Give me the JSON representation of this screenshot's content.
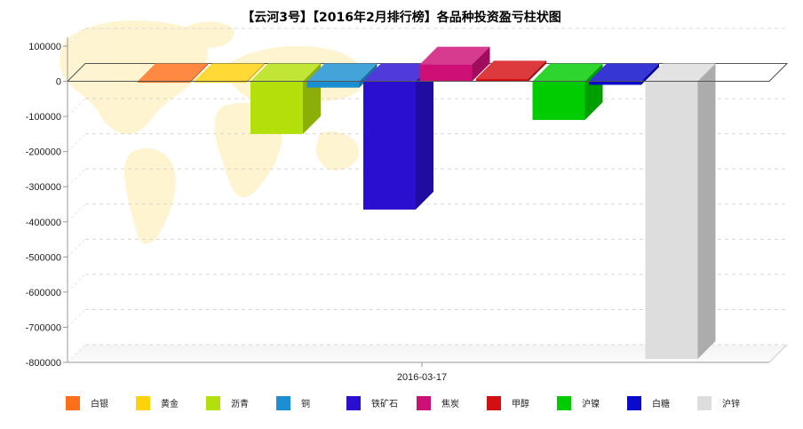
{
  "chart_data": {
    "type": "bar",
    "title": "【云河3号】【2016年2月排行榜】各品种投资盈亏柱状图",
    "categories": [
      "2016-03-17"
    ],
    "xlabel": "",
    "ylabel": "",
    "ylim": [
      -800000,
      100000
    ],
    "yticks": [
      100000,
      0,
      -100000,
      -200000,
      -300000,
      -400000,
      -500000,
      -600000,
      -700000,
      -800000
    ],
    "grid": true,
    "legend_position": "bottom",
    "series": [
      {
        "name": "白银",
        "color": "#FF6F1A",
        "values": [
          0
        ]
      },
      {
        "name": "黄金",
        "color": "#FFD20A",
        "values": [
          0
        ]
      },
      {
        "name": "沥青",
        "color": "#B3E00A",
        "values": [
          -150000
        ]
      },
      {
        "name": "铜",
        "color": "#1B8FD1",
        "values": [
          -18000
        ]
      },
      {
        "name": "铁矿石",
        "color": "#2A0FD1",
        "values": [
          -365000
        ]
      },
      {
        "name": "焦炭",
        "color": "#CE1076",
        "values": [
          48000
        ]
      },
      {
        "name": "甲醇",
        "color": "#D40F12",
        "values": [
          8000
        ]
      },
      {
        "name": "沪镍",
        "color": "#00CC00",
        "values": [
          -110000
        ]
      },
      {
        "name": "白糖",
        "color": "#0A0ACC",
        "values": [
          -10000
        ]
      },
      {
        "name": "沪锌",
        "color": "#DDDDDD",
        "values": [
          -790000
        ]
      }
    ]
  }
}
